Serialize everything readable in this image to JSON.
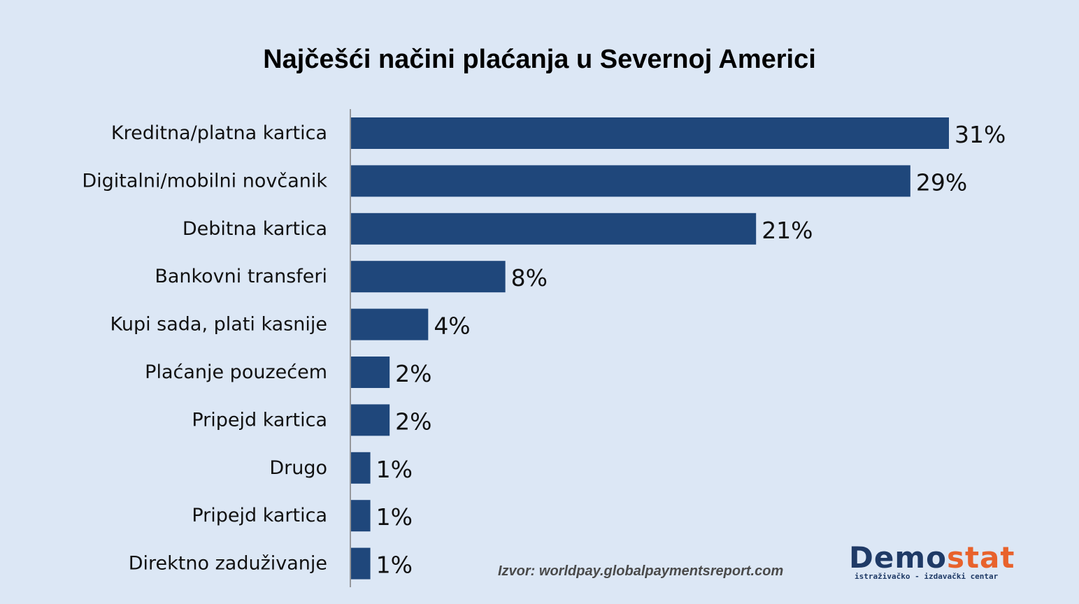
{
  "chart_data": {
    "type": "bar",
    "orientation": "horizontal",
    "title": "Najčešći načini plaćanja u Severnoj Americi",
    "categories": [
      "Kreditna/platna kartica",
      "Digitalni/mobilni novčanik",
      "Debitna kartica",
      "Bankovni transferi",
      "Kupi sada, plati kasnije",
      "Plaćanje pouzećem",
      "Pripejd kartica",
      "Drugo",
      "Pripejd kartica",
      "Direktno zaduživanje"
    ],
    "values": [
      31,
      29,
      21,
      8,
      4,
      2,
      2,
      1,
      1,
      1
    ],
    "value_labels": [
      "31%",
      "29%",
      "21%",
      "8%",
      "4%",
      "2%",
      "2%",
      "1%",
      "1%",
      "1%"
    ],
    "unit": "%",
    "bar_color": "#1f477b",
    "grid": false,
    "legend": "none"
  },
  "source": "Izvor: worldpay.globalpaymentsreport.com",
  "logo": {
    "word_main": "Demo",
    "word_accent": "stat",
    "tagline": "istraživačko - izdavački centar",
    "color": "#1f3a66",
    "accent_color": "#e8622c"
  }
}
